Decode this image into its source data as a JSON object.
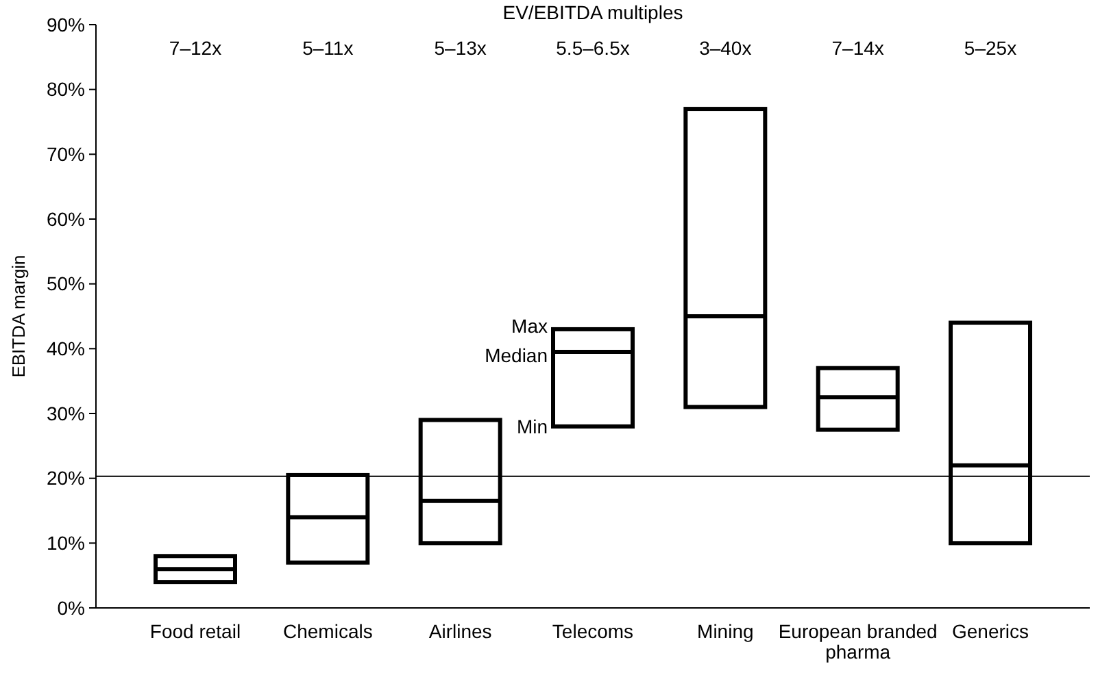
{
  "chart_data": {
    "type": "box",
    "ylabel": "EBITDA margin",
    "categories": [
      "Food retail",
      "Chemicals",
      "Airlines",
      "Telecoms",
      "Mining",
      "European branded pharma",
      "Generics"
    ],
    "boxes": [
      {
        "low": 4,
        "q1": 4,
        "median": 6,
        "q3": 8,
        "high": 8
      },
      {
        "low": 7,
        "q1": 7,
        "median": 14,
        "q3": 20.5,
        "high": 20.5
      },
      {
        "low": 10,
        "q1": 10,
        "median": 16.5,
        "q3": 29,
        "high": 29
      },
      {
        "low": 28,
        "q1": 28,
        "median": 39.5,
        "q3": 43,
        "high": 43
      },
      {
        "low": 31,
        "q1": 31,
        "median": 45,
        "q3": 77,
        "high": 77
      },
      {
        "low": 27.5,
        "q1": 27.5,
        "median": 32.5,
        "q3": 37,
        "high": 37
      },
      {
        "low": 10,
        "q1": 10,
        "median": 22,
        "q3": 44,
        "high": 44
      }
    ],
    "color": "#000000",
    "ylim": [
      0,
      90
    ],
    "yticks": [
      {
        "value": 0,
        "label": "0%"
      },
      {
        "value": 10,
        "label": "10%"
      },
      {
        "value": 20,
        "label": "20%"
      },
      {
        "value": 30,
        "label": "30%"
      },
      {
        "value": 40,
        "label": "40%"
      },
      {
        "value": 50,
        "label": "50%"
      },
      {
        "value": 60,
        "label": "60%"
      },
      {
        "value": 70,
        "label": "70%"
      },
      {
        "value": 80,
        "label": "80%"
      },
      {
        "value": 90,
        "label": "90%"
      }
    ],
    "ref_lines": [
      {
        "axis": "y",
        "value": 20.3,
        "color": "#000000"
      }
    ],
    "annotations": [
      "EV/EBITDA multiples",
      "7–12x",
      "5–11x",
      "5–13x",
      "5.5–6.5x",
      "3–40x",
      "7–14x",
      "5–25x",
      {
        "text": "Max",
        "x": "Telecoms",
        "y": 43.5
      },
      {
        "text": "Median",
        "x": "Telecoms",
        "y": 39
      },
      {
        "text": "Min",
        "x": "Telecoms",
        "y": 28
      }
    ],
    "grid": false
  }
}
